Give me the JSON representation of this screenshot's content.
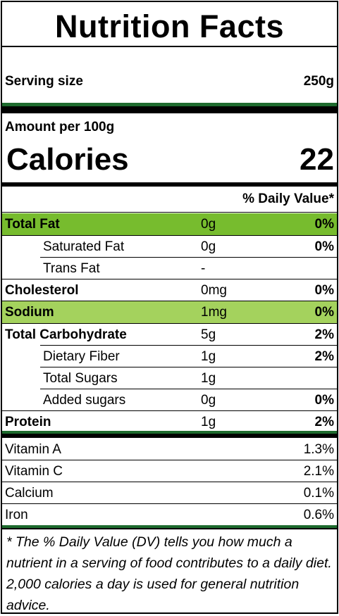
{
  "label": {
    "title": "Nutrition Facts",
    "serving_size_label": "Serving size",
    "serving_size_value": "250g",
    "amount_per_label": "Amount per 100g",
    "calories_label": "Calories",
    "calories_value": "22",
    "daily_value_header": "% Daily Value*",
    "nutrients": [
      {
        "name": "Total Fat",
        "amount": "0g",
        "dv": "0%"
      },
      {
        "name": "Saturated Fat",
        "amount": "0g",
        "dv": "0%"
      },
      {
        "name": "Trans Fat",
        "amount": "-",
        "dv": ""
      },
      {
        "name": "Cholesterol",
        "amount": "0mg",
        "dv": "0%"
      },
      {
        "name": "Sodium",
        "amount": "1mg",
        "dv": "0%"
      },
      {
        "name": "Total Carbohydrate",
        "amount": "5g",
        "dv": "2%"
      },
      {
        "name": "Dietary Fiber",
        "amount": "1g",
        "dv": "2%"
      },
      {
        "name": "Total Sugars",
        "amount": "1g",
        "dv": ""
      },
      {
        "name": "Added sugars",
        "amount": "0g",
        "dv": "0%"
      },
      {
        "name": "Protein",
        "amount": "1g",
        "dv": "2%"
      }
    ],
    "vitamins": [
      {
        "name": "Vitamin A",
        "value": "1.3%"
      },
      {
        "name": "Vitamin C",
        "value": "2.1%"
      },
      {
        "name": "Calcium",
        "value": "0.1%"
      },
      {
        "name": "Iron",
        "value": "0.6%"
      }
    ],
    "footnote": "* The % Daily Value (DV) tells you how much a nutrient in a serving of food contributes to a daily diet. 2,000 calories a day is used for general nutrition advice."
  },
  "colors": {
    "rule_green": "#1e6b2e",
    "highlight_fat": "#77bc2e",
    "highlight_sodium": "#a4d25d"
  }
}
